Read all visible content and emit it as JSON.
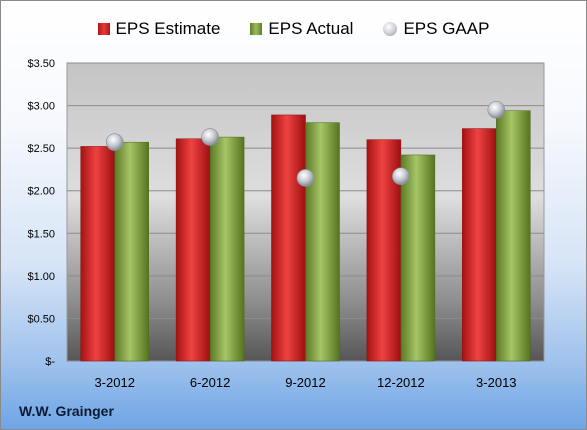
{
  "legend": {
    "estimate": "EPS Estimate",
    "actual": "EPS Actual",
    "gaap": "EPS GAAP"
  },
  "company": "W.W. Grainger",
  "colors": {
    "estimate": "#d42a2a",
    "actual": "#8bad4a",
    "gaap": "#c0c4ca"
  },
  "chart_data": {
    "type": "bar",
    "categories": [
      "3-2012",
      "6-2012",
      "9-2012",
      "12-2012",
      "3-2013"
    ],
    "series": [
      {
        "name": "EPS Estimate",
        "values": [
          2.52,
          2.61,
          2.89,
          2.6,
          2.73
        ]
      },
      {
        "name": "EPS Actual",
        "values": [
          2.57,
          2.63,
          2.8,
          2.42,
          2.94
        ]
      },
      {
        "name": "EPS GAAP",
        "values": [
          2.57,
          2.63,
          2.15,
          2.17,
          2.95
        ]
      }
    ],
    "ylim": [
      0,
      3.5
    ],
    "yticks": [
      0,
      0.5,
      1.0,
      1.5,
      2.0,
      2.5,
      3.0,
      3.5
    ],
    "ytick_labels": [
      "$-",
      "$0.50",
      "$1.00",
      "$1.50",
      "$2.00",
      "$2.50",
      "$3.00",
      "$3.50"
    ],
    "grid": true,
    "legend_position": "top"
  }
}
